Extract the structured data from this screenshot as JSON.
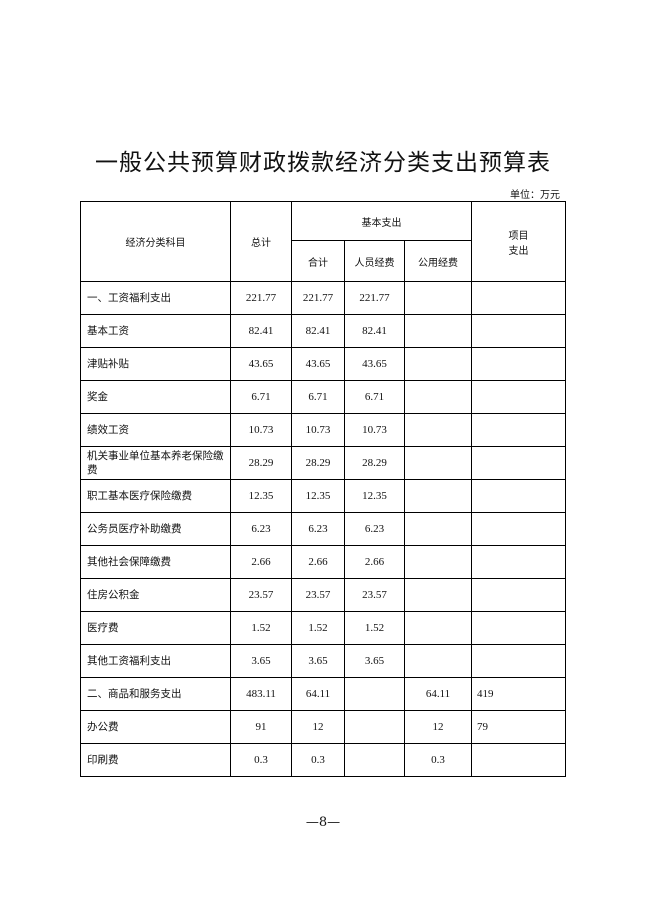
{
  "title": "一般公共预算财政拨款经济分类支出预算表",
  "unit": "单位：万元",
  "headers": {
    "category": "经济分类科目",
    "total": "总计",
    "basic": "基本支出",
    "subtotal": "合计",
    "personnel": "人员经费",
    "public": "公用经费",
    "project_line1": "项目",
    "project_line2": "支出"
  },
  "rows": [
    {
      "name": "一、工资福利支出",
      "total": "221.77",
      "subtotal": "221.77",
      "personnel": "221.77",
      "public": "",
      "project": ""
    },
    {
      "name": "基本工资",
      "total": "82.41",
      "subtotal": "82.41",
      "personnel": "82.41",
      "public": "",
      "project": ""
    },
    {
      "name": "津贴补贴",
      "total": "43.65",
      "subtotal": "43.65",
      "personnel": "43.65",
      "public": "",
      "project": ""
    },
    {
      "name": "奖金",
      "total": "6.71",
      "subtotal": "6.71",
      "personnel": "6.71",
      "public": "",
      "project": ""
    },
    {
      "name": "绩效工资",
      "total": "10.73",
      "subtotal": "10.73",
      "personnel": "10.73",
      "public": "",
      "project": ""
    },
    {
      "name": "机关事业单位基本养老保险缴费",
      "total": "28.29",
      "subtotal": "28.29",
      "personnel": "28.29",
      "public": "",
      "project": ""
    },
    {
      "name": "职工基本医疗保险缴费",
      "total": "12.35",
      "subtotal": "12.35",
      "personnel": "12.35",
      "public": "",
      "project": ""
    },
    {
      "name": "公务员医疗补助缴费",
      "total": "6.23",
      "subtotal": "6.23",
      "personnel": "6.23",
      "public": "",
      "project": ""
    },
    {
      "name": "其他社会保障缴费",
      "total": "2.66",
      "subtotal": "2.66",
      "personnel": "2.66",
      "public": "",
      "project": ""
    },
    {
      "name": "住房公积金",
      "total": "23.57",
      "subtotal": "23.57",
      "personnel": "23.57",
      "public": "",
      "project": ""
    },
    {
      "name": "医疗费",
      "total": "1.52",
      "subtotal": "1.52",
      "personnel": "1.52",
      "public": "",
      "project": ""
    },
    {
      "name": "其他工资福利支出",
      "total": "3.65",
      "subtotal": "3.65",
      "personnel": "3.65",
      "public": "",
      "project": ""
    },
    {
      "name": "二、商品和服务支出",
      "total": "483.11",
      "subtotal": "64.11",
      "personnel": "",
      "public": "64.11",
      "project": "419"
    },
    {
      "name": "办公费",
      "total": "91",
      "subtotal": "12",
      "personnel": "",
      "public": "12",
      "project": "79"
    },
    {
      "name": "印刷费",
      "total": "0.3",
      "subtotal": "0.3",
      "personnel": "",
      "public": "0.3",
      "project": ""
    }
  ],
  "page_number": "—8—"
}
